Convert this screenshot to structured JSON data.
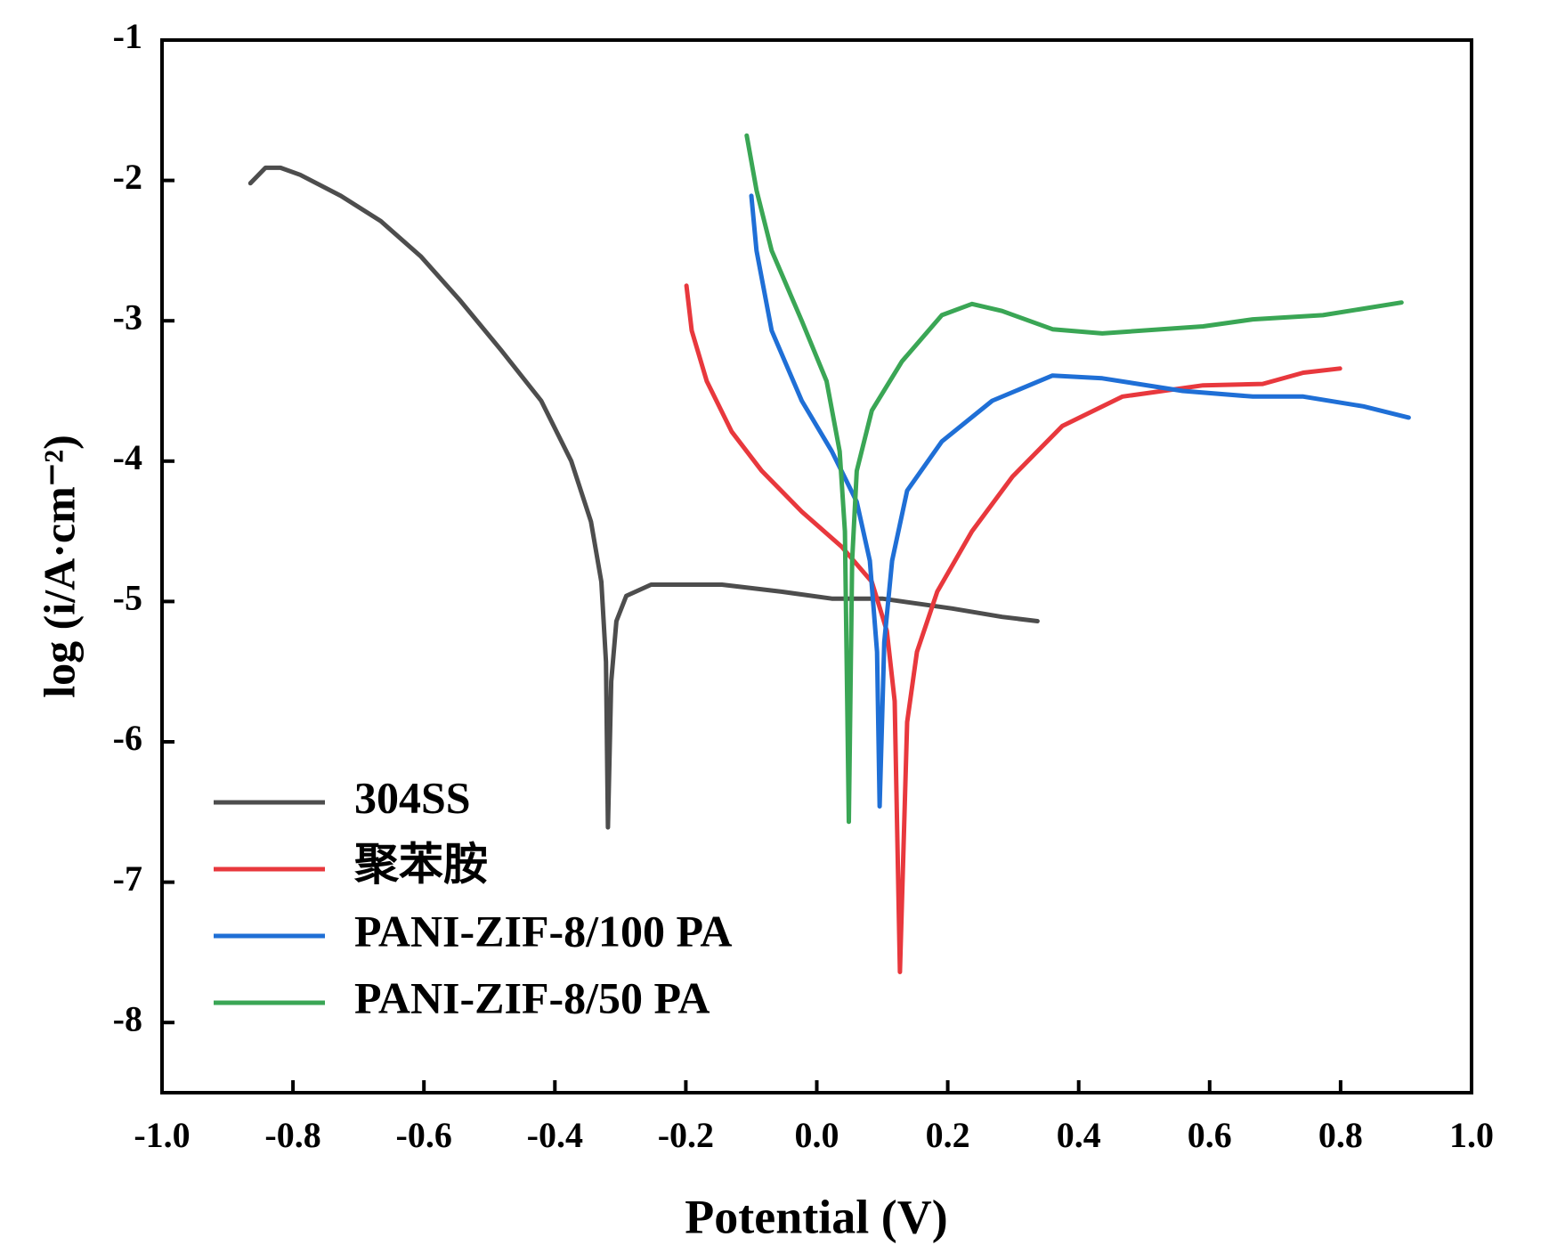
{
  "chart_data": {
    "type": "line",
    "xlabel": "Potential (V)",
    "ylabel": "log (i/A·cm⁻²)",
    "xlim": [
      -1,
      1
    ],
    "xticks": [
      {
        "value": -1,
        "label": "-1.0"
      },
      -0.8,
      -0.6,
      -0.4,
      -0.2,
      {
        "value": 0,
        "label": "0.0"
      },
      0.2,
      0.4,
      0.6,
      0.8,
      {
        "value": 1,
        "label": "1.0"
      }
    ],
    "ylim": [
      -8.5,
      -1
    ],
    "yticks": [
      -1,
      -2,
      -3,
      -4,
      -5,
      -6,
      -7,
      -8
    ],
    "legend": "lower left",
    "series": [
      {
        "name": "304SS",
        "color": "#4d4d4d",
        "x": [
          -0.865,
          -0.842,
          -0.819,
          -0.789,
          -0.727,
          -0.666,
          -0.605,
          -0.544,
          -0.482,
          -0.421,
          -0.375,
          -0.345,
          -0.329,
          -0.322,
          -0.319,
          -0.314,
          -0.306,
          -0.291,
          -0.253,
          -0.145,
          -0.054,
          0.023,
          0.1,
          0.207,
          0.283,
          0.337
        ],
        "values": [
          -2.02,
          -1.91,
          -1.91,
          -1.96,
          -2.11,
          -2.29,
          -2.54,
          -2.86,
          -3.21,
          -3.57,
          -4.0,
          -4.43,
          -4.86,
          -5.43,
          -6.61,
          -5.57,
          -5.14,
          -4.96,
          -4.88,
          -4.88,
          -4.93,
          -4.98,
          -4.98,
          -5.05,
          -5.11,
          -5.14
        ]
      },
      {
        "name": "聚苯胺",
        "color": "#e8383d",
        "x": [
          -0.199,
          -0.191,
          -0.168,
          -0.13,
          -0.084,
          -0.023,
          0.038,
          0.084,
          0.107,
          0.119,
          0.127,
          0.138,
          0.153,
          0.184,
          0.237,
          0.299,
          0.375,
          0.467,
          0.59,
          0.681,
          0.743,
          0.799
        ],
        "values": [
          -2.75,
          -3.07,
          -3.43,
          -3.79,
          -4.07,
          -4.36,
          -4.61,
          -4.86,
          -5.21,
          -5.71,
          -7.64,
          -5.86,
          -5.36,
          -4.93,
          -4.5,
          -4.11,
          -3.75,
          -3.54,
          -3.46,
          -3.45,
          -3.37,
          -3.34
        ]
      },
      {
        "name": "PANI-ZIF-8/100 PA",
        "color": "#1f6fd6",
        "x": [
          -0.1,
          -0.092,
          -0.069,
          -0.023,
          0.023,
          0.061,
          0.081,
          0.092,
          0.096,
          0.103,
          0.115,
          0.138,
          0.191,
          0.268,
          0.36,
          0.436,
          0.559,
          0.666,
          0.743,
          0.835,
          0.904
        ],
        "values": [
          -2.11,
          -2.5,
          -3.07,
          -3.57,
          -3.93,
          -4.29,
          -4.71,
          -5.36,
          -6.46,
          -5.29,
          -4.71,
          -4.21,
          -3.86,
          -3.57,
          -3.39,
          -3.41,
          -3.5,
          -3.54,
          -3.54,
          -3.61,
          -3.69
        ]
      },
      {
        "name": "PANI-ZIF-8/50 PA",
        "color": "#3aa655",
        "x": [
          -0.107,
          -0.092,
          -0.069,
          -0.023,
          0.015,
          0.035,
          0.043,
          0.049,
          0.054,
          0.061,
          0.084,
          0.13,
          0.191,
          0.237,
          0.283,
          0.36,
          0.436,
          0.59,
          0.666,
          0.773,
          0.893
        ],
        "values": [
          -1.68,
          -2.07,
          -2.5,
          -3.0,
          -3.43,
          -3.93,
          -4.5,
          -6.57,
          -4.71,
          -4.07,
          -3.64,
          -3.29,
          -2.96,
          -2.88,
          -2.93,
          -3.06,
          -3.09,
          -3.04,
          -2.99,
          -2.96,
          -2.87
        ]
      }
    ]
  }
}
